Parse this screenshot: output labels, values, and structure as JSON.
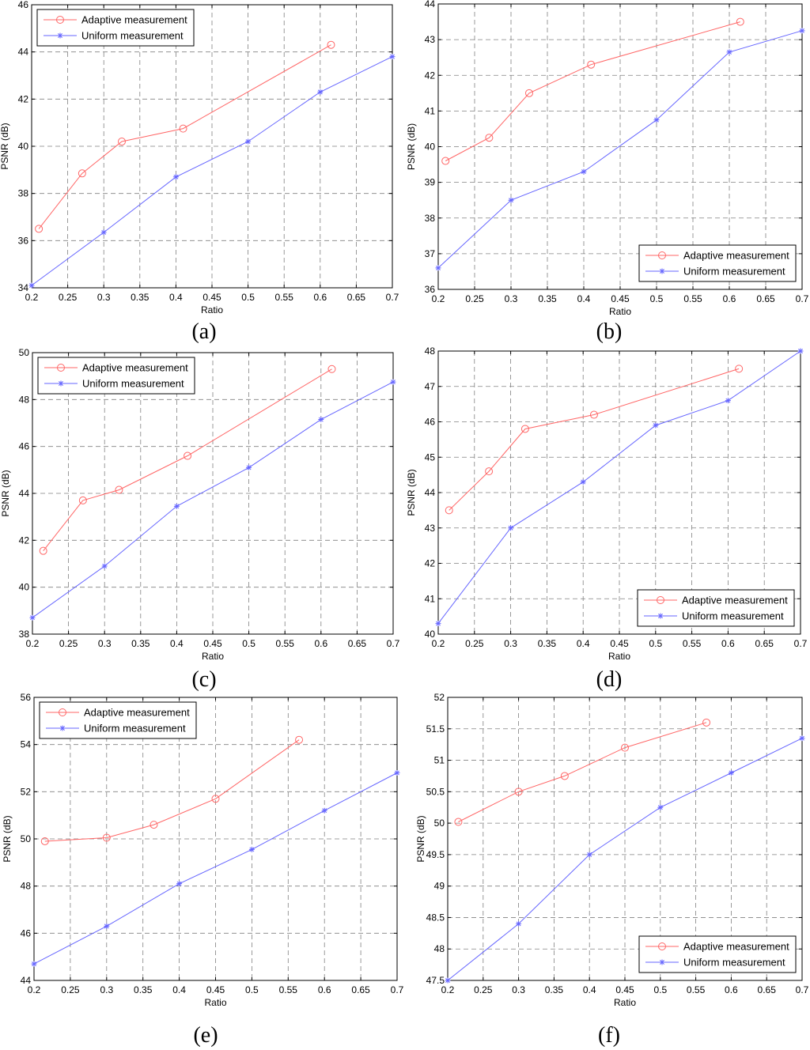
{
  "colors": {
    "adaptive": "#ff6666",
    "uniform": "#6666ff",
    "grid": "#808080",
    "axis": "#000000"
  },
  "chart_data": [
    {
      "type": "line",
      "caption": "(a)",
      "xlabel": "Ratio",
      "ylabel": "PSNR (dB)",
      "xlim": [
        0.2,
        0.7
      ],
      "ylim": [
        34,
        46
      ],
      "xticks": [
        0.2,
        0.25,
        0.3,
        0.35,
        0.4,
        0.45,
        0.5,
        0.55,
        0.6,
        0.65,
        0.7
      ],
      "yticks": [
        34,
        36,
        38,
        40,
        42,
        44,
        46
      ],
      "grid": true,
      "legend_position": "top-left",
      "series": [
        {
          "name": "Adaptive measurement",
          "marker": "circle",
          "x": [
            0.21,
            0.27,
            0.325,
            0.41,
            0.615
          ],
          "y": [
            36.5,
            38.85,
            40.2,
            40.75,
            44.3
          ]
        },
        {
          "name": "Uniform measurement",
          "marker": "star",
          "x": [
            0.2,
            0.3,
            0.4,
            0.5,
            0.6,
            0.7
          ],
          "y": [
            34.1,
            36.35,
            38.7,
            40.2,
            42.3,
            43.8
          ]
        }
      ]
    },
    {
      "type": "line",
      "caption": "(b)",
      "xlabel": "Ratio",
      "ylabel": "PSNR (dB)",
      "xlim": [
        0.2,
        0.7
      ],
      "ylim": [
        36,
        44
      ],
      "xticks": [
        0.2,
        0.25,
        0.3,
        0.35,
        0.4,
        0.45,
        0.5,
        0.55,
        0.6,
        0.65,
        0.7
      ],
      "yticks": [
        36,
        37,
        38,
        39,
        40,
        41,
        42,
        43,
        44
      ],
      "grid": true,
      "legend_position": "bottom-right",
      "series": [
        {
          "name": "Adaptive measurement",
          "marker": "circle",
          "x": [
            0.21,
            0.27,
            0.325,
            0.41,
            0.615
          ],
          "y": [
            39.6,
            40.25,
            41.5,
            42.3,
            43.5
          ]
        },
        {
          "name": "Uniform measurement",
          "marker": "star",
          "x": [
            0.2,
            0.3,
            0.4,
            0.5,
            0.6,
            0.7
          ],
          "y": [
            36.6,
            38.5,
            39.3,
            40.75,
            42.65,
            43.25
          ]
        }
      ]
    },
    {
      "type": "line",
      "caption": "(c)",
      "xlabel": "Ratio",
      "ylabel": "PSNR (dB)",
      "xlim": [
        0.2,
        0.7
      ],
      "ylim": [
        38,
        50
      ],
      "xticks": [
        0.2,
        0.25,
        0.3,
        0.35,
        0.4,
        0.45,
        0.5,
        0.55,
        0.6,
        0.65,
        0.7
      ],
      "yticks": [
        38,
        40,
        42,
        44,
        46,
        48,
        50
      ],
      "grid": true,
      "legend_position": "top-left",
      "series": [
        {
          "name": "Adaptive measurement",
          "marker": "circle",
          "x": [
            0.215,
            0.27,
            0.32,
            0.415,
            0.615
          ],
          "y": [
            41.55,
            43.7,
            44.15,
            45.6,
            49.3
          ]
        },
        {
          "name": "Uniform measurement",
          "marker": "star",
          "x": [
            0.2,
            0.3,
            0.4,
            0.5,
            0.6,
            0.7
          ],
          "y": [
            38.7,
            40.9,
            43.45,
            45.1,
            47.15,
            48.75
          ]
        }
      ]
    },
    {
      "type": "line",
      "caption": "(d)",
      "xlabel": "Ratio",
      "ylabel": "PSNR (dB)",
      "xlim": [
        0.2,
        0.7
      ],
      "ylim": [
        40,
        48
      ],
      "xticks": [
        0.2,
        0.25,
        0.3,
        0.35,
        0.4,
        0.45,
        0.5,
        0.55,
        0.6,
        0.65,
        0.7
      ],
      "yticks": [
        40,
        41,
        42,
        43,
        44,
        45,
        46,
        47,
        48
      ],
      "grid": true,
      "legend_position": "bottom-right",
      "series": [
        {
          "name": "Adaptive measurement",
          "marker": "circle",
          "x": [
            0.215,
            0.27,
            0.32,
            0.415,
            0.615
          ],
          "y": [
            43.5,
            44.6,
            45.8,
            46.2,
            47.5
          ]
        },
        {
          "name": "Uniform measurement",
          "marker": "star",
          "x": [
            0.2,
            0.3,
            0.4,
            0.5,
            0.6,
            0.7
          ],
          "y": [
            40.3,
            43.0,
            44.3,
            45.9,
            46.6,
            48.0
          ]
        }
      ]
    },
    {
      "type": "line",
      "caption": "(e)",
      "xlabel": "Ratio",
      "ylabel": "PSNR (dB)",
      "xlim": [
        0.2,
        0.7
      ],
      "ylim": [
        44,
        56
      ],
      "xticks": [
        0.2,
        0.25,
        0.3,
        0.35,
        0.4,
        0.45,
        0.5,
        0.55,
        0.6,
        0.65,
        0.7
      ],
      "yticks": [
        44,
        46,
        48,
        50,
        52,
        54,
        56
      ],
      "grid": true,
      "legend_position": "top-left",
      "series": [
        {
          "name": "Adaptive measurement",
          "marker": "circle",
          "x": [
            0.215,
            0.3,
            0.365,
            0.45,
            0.565
          ],
          "y": [
            49.9,
            50.05,
            50.6,
            51.7,
            54.2
          ]
        },
        {
          "name": "Uniform measurement",
          "marker": "star",
          "x": [
            0.2,
            0.3,
            0.4,
            0.5,
            0.6,
            0.7
          ],
          "y": [
            44.7,
            46.3,
            48.1,
            49.55,
            51.2,
            52.8
          ]
        }
      ]
    },
    {
      "type": "line",
      "caption": "(f)",
      "xlabel": "Ratio",
      "ylabel": "PSNR (dB)",
      "xlim": [
        0.2,
        0.7
      ],
      "ylim": [
        47.5,
        52
      ],
      "xticks": [
        0.2,
        0.25,
        0.3,
        0.35,
        0.4,
        0.45,
        0.5,
        0.55,
        0.6,
        0.65,
        0.7
      ],
      "yticks": [
        47.5,
        48,
        48.5,
        49,
        49.5,
        50,
        50.5,
        51,
        51.5,
        52
      ],
      "grid": true,
      "legend_position": "bottom-right",
      "series": [
        {
          "name": "Adaptive measurement",
          "marker": "circle",
          "x": [
            0.215,
            0.3,
            0.365,
            0.45,
            0.565
          ],
          "y": [
            50.02,
            50.5,
            50.75,
            51.2,
            51.6
          ]
        },
        {
          "name": "Uniform measurement",
          "marker": "star",
          "x": [
            0.2,
            0.3,
            0.4,
            0.5,
            0.6,
            0.7
          ],
          "y": [
            47.5,
            48.4,
            49.5,
            50.25,
            50.8,
            51.35
          ]
        }
      ]
    }
  ]
}
